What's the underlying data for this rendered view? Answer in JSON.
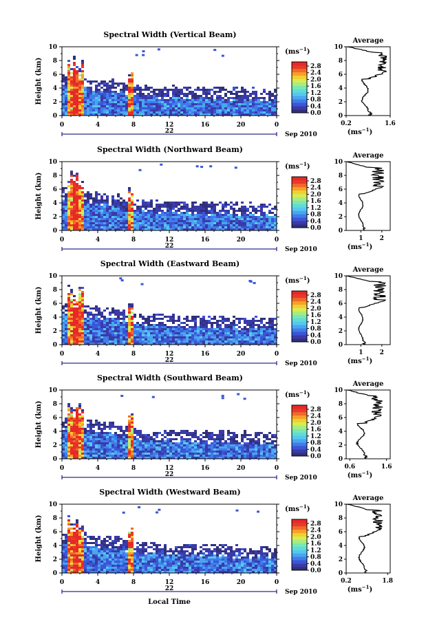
{
  "colors": {
    "scale": [
      "#30307a",
      "#3a3aa8",
      "#3b55d8",
      "#3f7de8",
      "#4aa5f0",
      "#55c8f0",
      "#60dcd8",
      "#7ae8b0",
      "#a8ec80",
      "#d8ec50",
      "#f0d030",
      "#f8a028",
      "#f06a28",
      "#e83a2a",
      "#e82828"
    ],
    "frame": "#000000",
    "axis_line": "#2b2b8a"
  },
  "common": {
    "x_ticks": [
      "0",
      "4",
      "8",
      "12",
      "16",
      "20",
      "0"
    ],
    "y_ticks": [
      "0",
      "2",
      "4",
      "6",
      "8",
      "10"
    ],
    "ylabel": "Height (km)",
    "date_day": "22",
    "date_suffix": "Sep 2010",
    "unit": "(ms",
    "unit_exp": "−1",
    "unit_close": ")",
    "colorbar_ticks": [
      "0.0",
      "0.4",
      "0.8",
      "1.2",
      "1.6",
      "2.0",
      "2.4",
      "2.8"
    ],
    "profile_title": "Average",
    "xlabel_bottom": "Local Time"
  },
  "chart_data": [
    {
      "type": "heatmap",
      "title": "Spectral Width (Vertical Beam)",
      "xlim": [
        0,
        24
      ],
      "ylim": [
        0,
        10
      ],
      "clim": [
        0,
        2.8
      ],
      "profile": {
        "ticks": [
          "0.2",
          "1.6"
        ],
        "xlim": [
          0.2,
          1.6
        ],
        "boundary_km": [
          5.3,
          6.4
        ],
        "low_level": [
          0.7,
          0.9
        ],
        "high_level": [
          1.2,
          1.5
        ]
      }
    },
    {
      "type": "heatmap",
      "title": "Spectral Width (Northward Beam)",
      "xlim": [
        0,
        24
      ],
      "ylim": [
        0,
        10
      ],
      "clim": [
        0,
        2.8
      ],
      "profile": {
        "ticks": [
          "1",
          "2"
        ],
        "xlim": [
          0.3,
          2.4
        ],
        "boundary_km": [
          5.3,
          6.4
        ],
        "low_level": [
          0.9,
          1.1
        ],
        "high_level": [
          1.5,
          2.1
        ]
      }
    },
    {
      "type": "heatmap",
      "title": "Spectral Width (Eastward Beam)",
      "xlim": [
        0,
        24
      ],
      "ylim": [
        0,
        10
      ],
      "clim": [
        0,
        2.8
      ],
      "profile": {
        "ticks": [
          "1",
          "2"
        ],
        "xlim": [
          0.3,
          2.4
        ],
        "boundary_km": [
          5.4,
          6.5
        ],
        "low_level": [
          0.9,
          1.1
        ],
        "high_level": [
          1.6,
          2.2
        ]
      }
    },
    {
      "type": "heatmap",
      "title": "Spectral Width (Southward Beam)",
      "xlim": [
        0,
        24
      ],
      "ylim": [
        0,
        10
      ],
      "clim": [
        0,
        2.8
      ],
      "profile": {
        "ticks": [
          "0.6",
          "1.6"
        ],
        "xlim": [
          0.5,
          1.7
        ],
        "boundary_km": [
          5.2,
          6.4
        ],
        "low_level": [
          0.8,
          1.0
        ],
        "high_level": [
          1.2,
          1.5
        ]
      }
    },
    {
      "type": "heatmap",
      "title": "Spectral Width (Westward Beam)",
      "xlim": [
        0,
        24
      ],
      "ylim": [
        0,
        10
      ],
      "clim": [
        0,
        2.8
      ],
      "profile": {
        "ticks": [
          "0.2",
          "1.8"
        ],
        "xlim": [
          0.2,
          1.9
        ],
        "boundary_km": [
          5.3,
          6.4
        ],
        "low_level": [
          0.7,
          0.9
        ],
        "high_level": [
          1.2,
          1.6
        ]
      }
    }
  ]
}
